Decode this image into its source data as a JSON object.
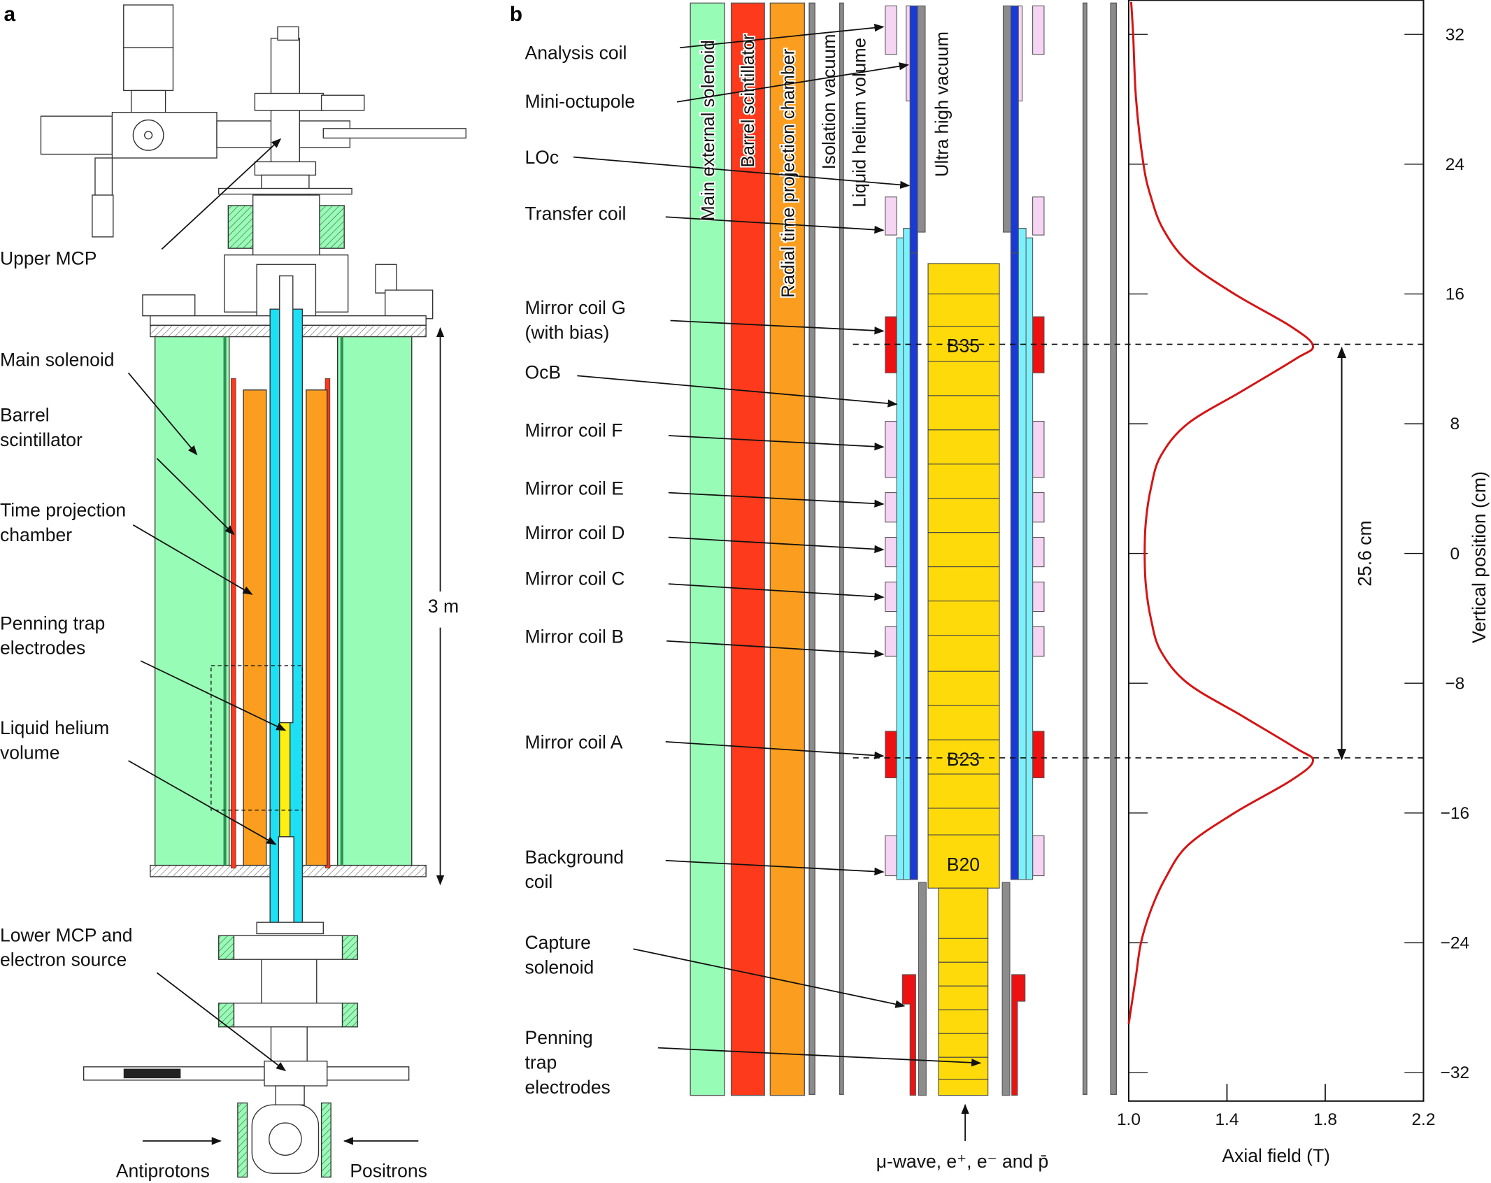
{
  "panel_a": {
    "letter": "a",
    "labels": [
      {
        "key": "upper-mcp",
        "lines": [
          "Upper MCP"
        ]
      },
      {
        "key": "main-solenoid",
        "lines": [
          "Main solenoid"
        ]
      },
      {
        "key": "barrel-scintillator",
        "lines": [
          "Barrel",
          "scintillator"
        ]
      },
      {
        "key": "time-projection-chamber",
        "lines": [
          "Time projection",
          "chamber"
        ]
      },
      {
        "key": "penning-trap-electrodes",
        "lines": [
          "Penning trap",
          "electrodes"
        ]
      },
      {
        "key": "liquid-helium-volume",
        "lines": [
          "Liquid helium",
          "volume"
        ]
      },
      {
        "key": "lower-mcp",
        "lines": [
          "Lower MCP and",
          "electron source"
        ]
      }
    ],
    "scale_label": "3 m",
    "beam_labels": {
      "antiprotons": "Antiprotons",
      "positrons": "Positrons"
    }
  },
  "panel_b": {
    "letter": "b",
    "labels": [
      {
        "key": "analysis-coil",
        "lines": [
          "Analysis coil"
        ]
      },
      {
        "key": "mini-octupole",
        "lines": [
          "Mini-octupole"
        ]
      },
      {
        "key": "loc",
        "lines": [
          "LOc"
        ]
      },
      {
        "key": "transfer-coil",
        "lines": [
          "Transfer coil"
        ]
      },
      {
        "key": "mirror-coil-g",
        "lines": [
          "Mirror coil G",
          "(with bias)"
        ]
      },
      {
        "key": "ocb",
        "lines": [
          "OcB"
        ]
      },
      {
        "key": "mirror-coil-f",
        "lines": [
          "Mirror coil F"
        ]
      },
      {
        "key": "mirror-coil-e",
        "lines": [
          "Mirror coil E"
        ]
      },
      {
        "key": "mirror-coil-d",
        "lines": [
          "Mirror coil D"
        ]
      },
      {
        "key": "mirror-coil-c",
        "lines": [
          "Mirror coil C"
        ]
      },
      {
        "key": "mirror-coil-b",
        "lines": [
          "Mirror coil B"
        ]
      },
      {
        "key": "mirror-coil-a",
        "lines": [
          "Mirror coil A"
        ]
      },
      {
        "key": "background-coil",
        "lines": [
          "Background",
          "coil"
        ]
      },
      {
        "key": "capture-solenoid",
        "lines": [
          "Capture",
          "solenoid"
        ]
      },
      {
        "key": "penning-trap-electrodes",
        "lines": [
          "Penning",
          "trap",
          "electrodes"
        ]
      }
    ],
    "band_labels": [
      "Main external solenoid",
      "Barrel scintillator",
      "Radial time projection chamber",
      "Isolation vacuum",
      "Liquid helium volume",
      "Ultra high vacuum"
    ],
    "electrode_labels": {
      "upper_peak": "B35",
      "lower_peak": "B23",
      "b20": "B20"
    },
    "beam_label": "μ-wave, e⁺, e⁻ and p̄",
    "colors": {
      "solenoid": "#97fcb5",
      "scintillator": "#fd3a1c",
      "tpc": "#fb9e1f",
      "mirror_coil_active": "#ee1111",
      "coil": "#f5d5f3",
      "octupole": "#1a3ad6",
      "ocb": "#7cf1fb",
      "electrodes": "#ffda0b",
      "vacuum_wall": "#8c8c8c"
    }
  },
  "chart_data": {
    "type": "line",
    "orientation": "vertical",
    "xlabel": "Axial field (T)",
    "ylabel": "Vertical position (cm)",
    "xlim": [
      1.0,
      2.2
    ],
    "ylim": [
      -34,
      34
    ],
    "xticks": [
      1.0,
      1.4,
      1.8,
      2.2
    ],
    "yticks": [
      32,
      24,
      16,
      8,
      0,
      -8,
      -16,
      -24,
      -32
    ],
    "ytick_labels": [
      "32",
      "24",
      "16",
      "8",
      "0",
      "−8",
      "−16",
      "−24",
      "−32"
    ],
    "grid": false,
    "line_color": "#d41515",
    "series": [
      {
        "field_T": [
          1.01,
          1.018,
          1.03,
          1.06,
          1.09,
          1.14,
          1.24,
          1.43,
          1.66,
          1.75,
          1.68,
          1.46,
          1.24,
          1.13,
          1.09,
          1.07,
          1.065,
          1.07,
          1.09,
          1.13,
          1.24,
          1.46,
          1.68,
          1.75,
          1.66,
          1.43,
          1.24,
          1.15,
          1.09,
          1.05,
          1.03,
          1.01,
          1.0
        ],
        "position_cm": [
          34,
          32,
          28,
          24,
          22,
          20,
          18,
          16,
          14,
          12.8,
          12,
          10,
          8,
          6,
          4,
          2,
          0,
          -2,
          -4,
          -6,
          -8,
          -10,
          -12,
          -12.8,
          -14,
          -16,
          -18,
          -20,
          -22,
          -24,
          -26,
          -28,
          -29
        ]
      }
    ],
    "annotations": [
      {
        "text": "25.6 cm",
        "between_cm": [
          12.8,
          -12.8
        ]
      }
    ]
  }
}
